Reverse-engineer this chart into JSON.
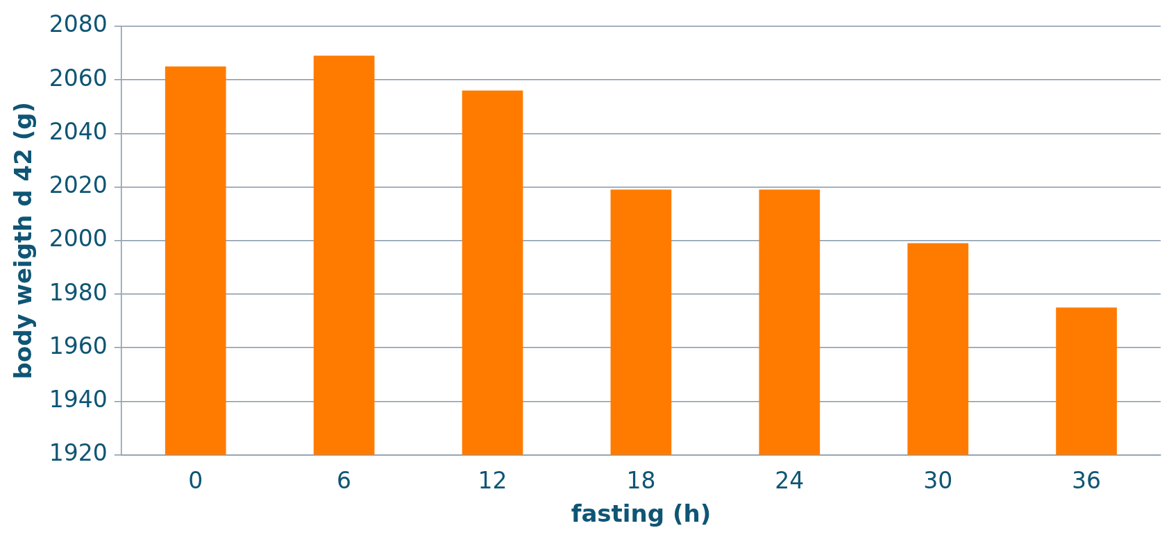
{
  "chart_data": {
    "type": "bar",
    "xlabel": "fasting (h)",
    "ylabel": "body weigth d 42 (g)",
    "categories": [
      "0",
      "6",
      "12",
      "18",
      "24",
      "30",
      "36"
    ],
    "values": [
      2065,
      2069,
      2056,
      2019,
      2019,
      1999,
      1975
    ],
    "color": "#ff7b00",
    "ylim": [
      1920,
      2080
    ],
    "yticks": [
      1920,
      1940,
      1960,
      1980,
      2000,
      2020,
      2040,
      2060,
      2080
    ],
    "grid": "y",
    "legend": false
  }
}
